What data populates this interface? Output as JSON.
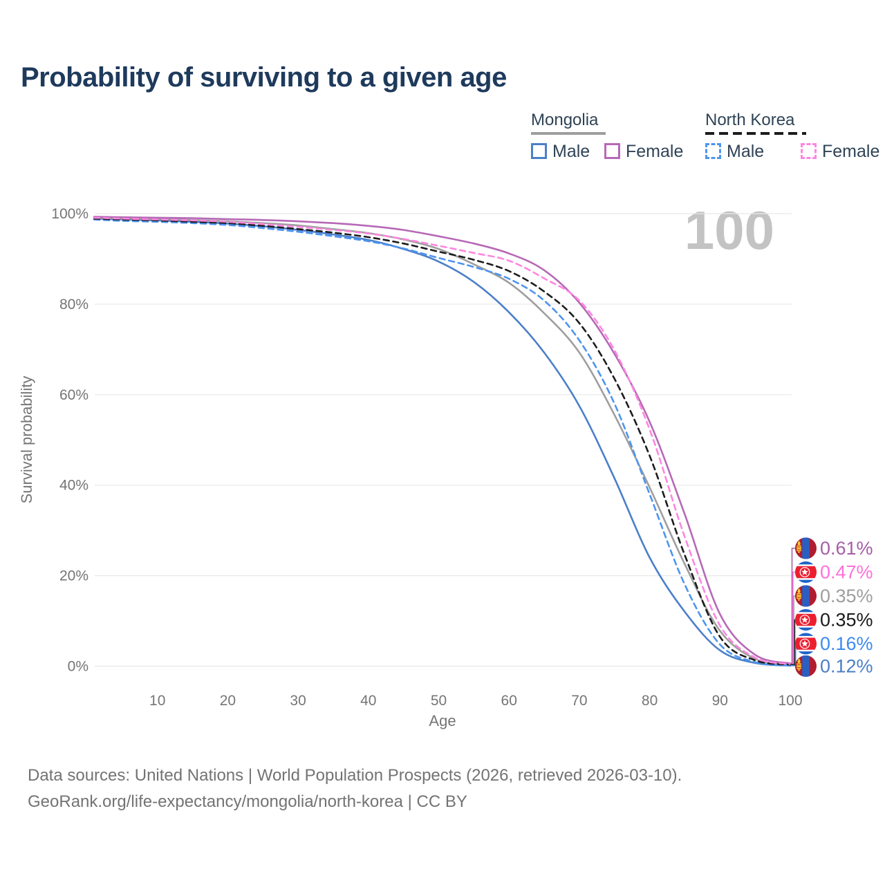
{
  "title": "Probability of surviving to a given age",
  "watermark": "100",
  "legend": {
    "groups": [
      {
        "label": "Mongolia",
        "line_style": "solid",
        "line_color": "#9e9e9e",
        "items": [
          {
            "label": "Male",
            "color": "#4b7fc9",
            "dashed": false
          },
          {
            "label": "Female",
            "color": "#b669b6",
            "dashed": false
          }
        ]
      },
      {
        "label": "North Korea",
        "line_style": "dashed",
        "line_color": "#1c1c1c",
        "items": [
          {
            "label": "Male",
            "color": "#4d94f0",
            "dashed": true
          },
          {
            "label": "Female",
            "color": "#ff85e0",
            "dashed": true
          }
        ]
      }
    ]
  },
  "y_axis": {
    "label": "Survival probability",
    "ticks": [
      "100%",
      "80%",
      "60%",
      "40%",
      "20%",
      "0%"
    ]
  },
  "x_axis": {
    "label": "Age",
    "ticks": [
      "10",
      "20",
      "30",
      "40",
      "50",
      "60",
      "70",
      "80",
      "90",
      "100"
    ]
  },
  "end_labels": [
    {
      "value": "0.61%",
      "numeric": 0.61,
      "flag": "mongolia",
      "color": "#a65da6"
    },
    {
      "value": "0.47%",
      "numeric": 0.47,
      "flag": "north-korea",
      "color": "#ff70d9"
    },
    {
      "value": "0.35%",
      "numeric": 0.35,
      "flag": "mongolia",
      "color": "#9e9e9e"
    },
    {
      "value": "0.35%",
      "numeric": 0.35,
      "flag": "north-korea",
      "color": "#1a1a1a"
    },
    {
      "value": "0.16%",
      "numeric": 0.16,
      "flag": "north-korea",
      "color": "#3c8af0"
    },
    {
      "value": "0.12%",
      "numeric": 0.12,
      "flag": "mongolia",
      "color": "#4a7ec8"
    }
  ],
  "footer": {
    "line1": "Data sources: United Nations | World Population Prospects (2026, retrieved 2026-03-10).",
    "line2": "GeoRank.org/life-expectancy/mongolia/north-korea | CC BY"
  },
  "chart_data": {
    "type": "line",
    "title": "Probability of surviving to a given age",
    "xlabel": "Age",
    "ylabel": "Survival probability",
    "xlim": [
      0,
      100
    ],
    "ylim": [
      0,
      100
    ],
    "grid": "horizontal",
    "legend_position": "top-right",
    "age_marker": "100",
    "x": [
      1,
      5,
      10,
      15,
      20,
      25,
      30,
      35,
      40,
      45,
      50,
      55,
      60,
      65,
      70,
      75,
      80,
      85,
      90,
      95,
      100
    ],
    "series": [
      {
        "name": "Mongolia Male",
        "country": "mongolia",
        "sex": "male",
        "style": "solid",
        "color": "#4b7fc9",
        "end_label": "0.12%",
        "values": [
          98.9,
          98.7,
          98.5,
          98.2,
          97.8,
          97.2,
          96.4,
          95.4,
          94.2,
          92.2,
          89.4,
          84.9,
          78.2,
          69.3,
          57.5,
          41.5,
          24.0,
          12.0,
          3.5,
          0.7,
          0.12
        ]
      },
      {
        "name": "Mongolia Total",
        "country": "mongolia",
        "sex": "both",
        "style": "solid",
        "color": "#9e9e9e",
        "end_label": "0.35%",
        "values": [
          99.1,
          98.9,
          98.8,
          98.6,
          98.3,
          97.9,
          97.4,
          96.6,
          95.7,
          94.3,
          92.2,
          88.8,
          84.7,
          78.0,
          69.3,
          55.5,
          39.5,
          22.5,
          7.8,
          1.6,
          0.35
        ]
      },
      {
        "name": "North Korea Male",
        "country": "north-korea",
        "sex": "male",
        "style": "dashed",
        "color": "#4d94f0",
        "end_label": "0.16%",
        "values": [
          98.7,
          98.4,
          98.2,
          97.9,
          97.5,
          96.8,
          96.0,
          95.0,
          93.9,
          92.3,
          90.2,
          88.2,
          85.6,
          80.8,
          72.0,
          58.0,
          38.0,
          18.0,
          4.8,
          0.9,
          0.16
        ]
      },
      {
        "name": "North Korea Total",
        "country": "north-korea",
        "sex": "both",
        "style": "dashed",
        "color": "#1c1c1c",
        "end_label": "0.35%",
        "values": [
          98.9,
          98.7,
          98.5,
          98.2,
          97.9,
          97.3,
          96.6,
          95.8,
          94.8,
          93.4,
          91.6,
          89.8,
          87.3,
          82.8,
          75.8,
          63.5,
          46.5,
          24.5,
          6.5,
          1.3,
          0.35
        ]
      },
      {
        "name": "Mongolia Female",
        "country": "mongolia",
        "sex": "female",
        "style": "solid",
        "color": "#b669b6",
        "end_label": "0.61%",
        "values": [
          99.3,
          99.2,
          99.1,
          99.0,
          98.8,
          98.6,
          98.3,
          97.9,
          97.3,
          96.4,
          95.0,
          93.4,
          91.2,
          87.5,
          80.3,
          69.0,
          54.0,
          33.5,
          11.5,
          2.5,
          0.61
        ]
      },
      {
        "name": "North Korea Female",
        "country": "north-korea",
        "sex": "female",
        "style": "dashed",
        "color": "#ff85e0",
        "end_label": "0.47%",
        "values": [
          99.1,
          98.9,
          98.7,
          98.5,
          98.2,
          97.7,
          97.1,
          96.4,
          95.6,
          94.4,
          92.9,
          91.3,
          89.6,
          85.7,
          80.8,
          69.8,
          52.3,
          28.5,
          9.0,
          1.9,
          0.47
        ]
      }
    ]
  }
}
